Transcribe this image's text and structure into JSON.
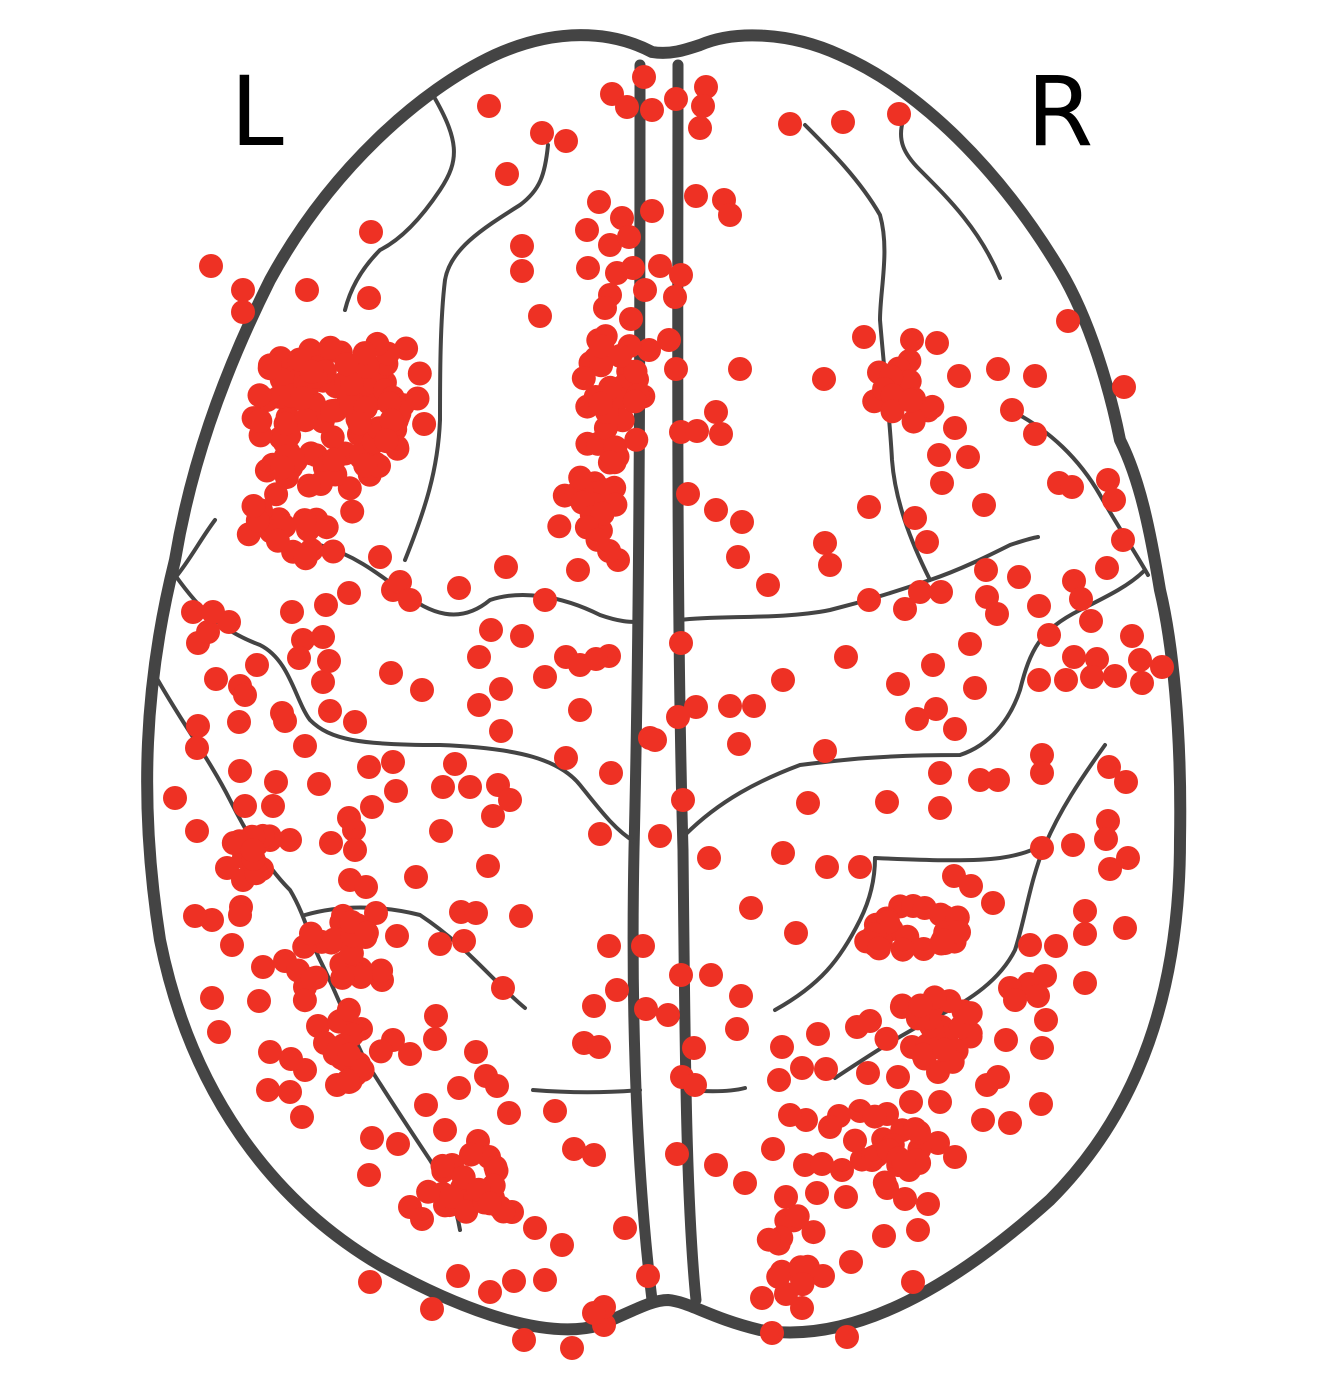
{
  "labels": {
    "left": "L",
    "right": "R"
  },
  "colors": {
    "outline": "#444444",
    "node": "#ee3124",
    "background": "#ffffff"
  }
}
